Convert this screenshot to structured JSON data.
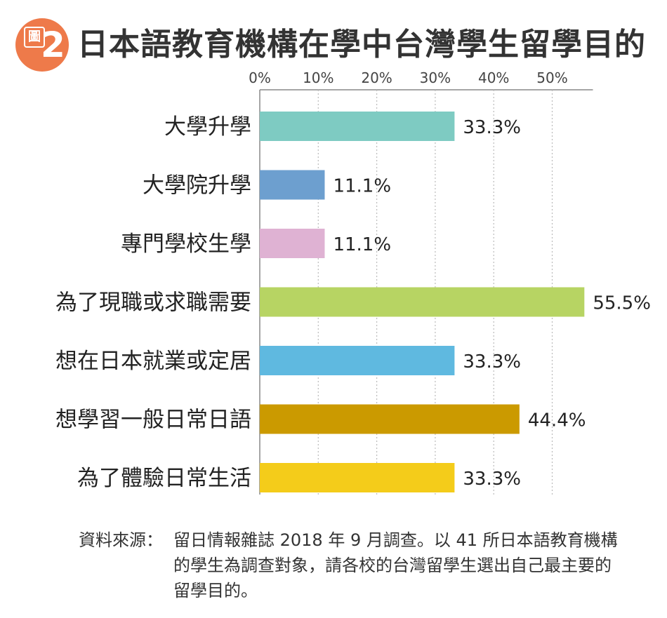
{
  "header": {
    "badge_char": "圖",
    "badge_num": "2",
    "title": "日本語教育機構在學中台灣學生留學目的"
  },
  "chart_data": {
    "type": "bar",
    "orientation": "horizontal",
    "title": "日本語教育機構在學中台灣學生留學目的",
    "xlabel": "",
    "ylabel": "",
    "xlim": [
      0,
      56
    ],
    "x_ticks": [
      "0%",
      "10%",
      "20%",
      "30%",
      "40%",
      "50%"
    ],
    "x_tick_values": [
      0,
      10,
      20,
      30,
      40,
      50
    ],
    "grid": true,
    "categories": [
      "大學升學",
      "大學院升學",
      "專門學校生學",
      "為了現職或求職需要",
      "想在日本就業或定居",
      "想學習一般日常日語",
      "為了體驗日常生活"
    ],
    "values": [
      33.3,
      11.1,
      11.1,
      55.5,
      33.3,
      44.4,
      33.3
    ],
    "value_labels": [
      "33.3%",
      "11.1%",
      "11.1%",
      "55.5%",
      "33.3%",
      "44.4%",
      "33.3%"
    ],
    "colors": [
      "#7ecbc2",
      "#6d9fcf",
      "#dfb2d3",
      "#b7d463",
      "#5fb9e0",
      "#cb9a00",
      "#f4cc1a"
    ]
  },
  "source": {
    "label": "資料來源：",
    "text": "留日情報雜誌 2018 年 9 月調查。以 41 所日本語教育機構的學生為調查對象，請各校的台灣留學生選出自己最主要的留學目的。"
  }
}
